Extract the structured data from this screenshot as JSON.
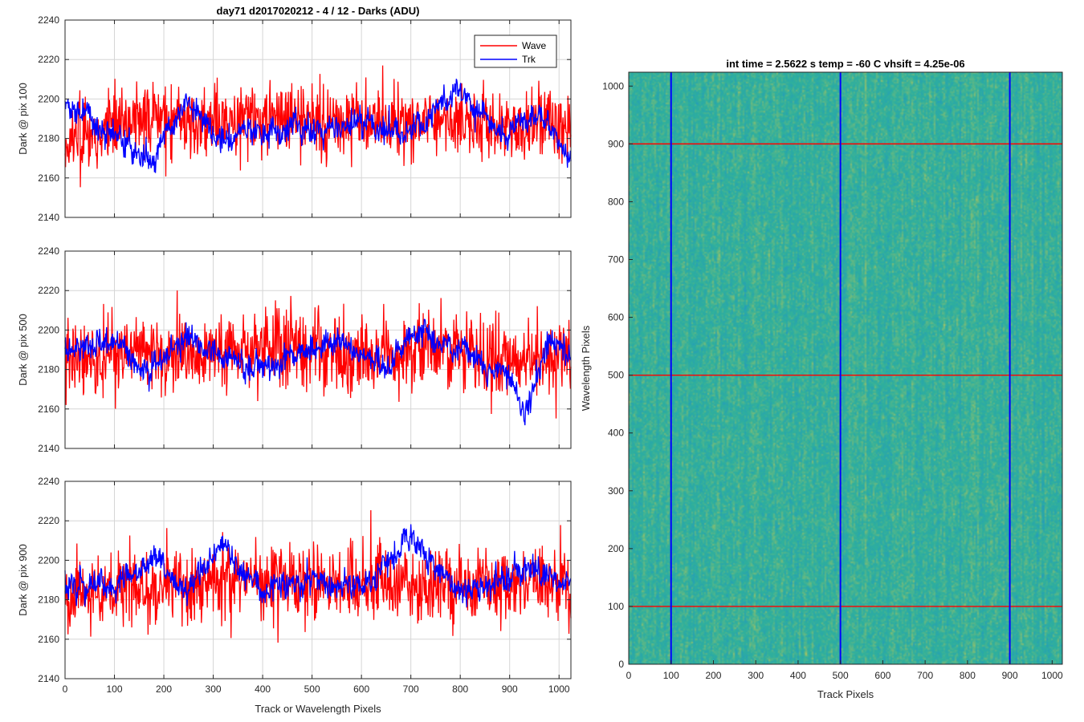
{
  "figure_title": "day71 d2017020212 - 4 / 12 - Darks (ADU)",
  "chart_data": [
    {
      "type": "line",
      "id": "dark-pix-100",
      "title": "day71 d2017020212 - 4 / 12 - Darks (ADU)",
      "xlabel": "",
      "ylabel": "Dark @ pix 100",
      "xlim": [
        0,
        1024
      ],
      "ylim": [
        2140,
        2240
      ],
      "xticks": [
        0,
        100,
        200,
        300,
        400,
        500,
        600,
        700,
        800,
        900,
        1000
      ],
      "yticks": [
        2140,
        2160,
        2180,
        2200,
        2220,
        2240
      ],
      "show_xtick_labels": false,
      "grid": true,
      "legend": {
        "placement": "top-right",
        "entries": [
          "Wave",
          "Trk"
        ]
      },
      "series": [
        {
          "name": "Wave",
          "color": "#ff0000",
          "mean": 2188,
          "noise": 9,
          "drift": 2,
          "x": [
            0,
            128,
            256,
            384,
            512,
            640,
            768,
            896,
            1024
          ],
          "y": [
            2176,
            2190,
            2189,
            2190,
            2191,
            2188,
            2189,
            2187,
            2186
          ]
        },
        {
          "name": "Trk",
          "color": "#0000ff",
          "mean": 2188,
          "noise": 3,
          "drift": 9,
          "x": [
            0,
            80,
            170,
            250,
            300,
            400,
            500,
            600,
            700,
            800,
            880,
            960,
            1024
          ],
          "y": [
            2198,
            2185,
            2168,
            2200,
            2180,
            2182,
            2185,
            2188,
            2182,
            2205,
            2182,
            2192,
            2170
          ]
        }
      ]
    },
    {
      "type": "line",
      "id": "dark-pix-500",
      "title": "",
      "xlabel": "",
      "ylabel": "Dark @ pix 500",
      "xlim": [
        0,
        1024
      ],
      "ylim": [
        2140,
        2240
      ],
      "xticks": [
        0,
        100,
        200,
        300,
        400,
        500,
        600,
        700,
        800,
        900,
        1000
      ],
      "yticks": [
        2140,
        2160,
        2180,
        2200,
        2220,
        2240
      ],
      "show_xtick_labels": false,
      "grid": true,
      "series": [
        {
          "name": "Wave",
          "color": "#ff0000",
          "mean": 2188,
          "noise": 9,
          "drift": 2,
          "x": [
            0,
            128,
            256,
            384,
            512,
            640,
            768,
            896,
            1024
          ],
          "y": [
            2186,
            2190,
            2188,
            2192,
            2190,
            2188,
            2190,
            2186,
            2185
          ]
        },
        {
          "name": "Trk",
          "color": "#0000ff",
          "mean": 2188,
          "noise": 3,
          "drift": 9,
          "x": [
            0,
            100,
            170,
            250,
            300,
            400,
            500,
            550,
            650,
            700,
            800,
            900,
            930,
            980,
            1024
          ],
          "y": [
            2188,
            2195,
            2178,
            2198,
            2186,
            2180,
            2190,
            2195,
            2180,
            2200,
            2190,
            2175,
            2158,
            2198,
            2185
          ]
        }
      ]
    },
    {
      "type": "line",
      "id": "dark-pix-900",
      "title": "",
      "xlabel": "Track or Wavelength Pixels",
      "ylabel": "Dark @ pix 900",
      "xlim": [
        0,
        1024
      ],
      "ylim": [
        2140,
        2240
      ],
      "xticks": [
        0,
        100,
        200,
        300,
        400,
        500,
        600,
        700,
        800,
        900,
        1000
      ],
      "yticks": [
        2140,
        2160,
        2180,
        2200,
        2220,
        2240
      ],
      "show_xtick_labels": true,
      "grid": true,
      "series": [
        {
          "name": "Wave",
          "color": "#ff0000",
          "mean": 2188,
          "noise": 9,
          "drift": 2,
          "x": [
            0,
            128,
            256,
            384,
            512,
            640,
            768,
            896,
            1024
          ],
          "y": [
            2180,
            2186,
            2188,
            2190,
            2188,
            2189,
            2187,
            2188,
            2186
          ]
        },
        {
          "name": "Trk",
          "color": "#0000ff",
          "mean": 2188,
          "noise": 3,
          "drift": 8,
          "x": [
            0,
            100,
            180,
            250,
            310,
            400,
            500,
            600,
            700,
            800,
            880,
            950,
            1024
          ],
          "y": [
            2188,
            2186,
            2202,
            2182,
            2208,
            2185,
            2190,
            2185,
            2212,
            2182,
            2190,
            2196,
            2188
          ]
        }
      ]
    },
    {
      "type": "heatmap",
      "id": "dark-frame-image",
      "title": "int time = 2.5622 s    temp = -60 C    vhsift = 4.25e-06",
      "xlabel": "Track Pixels",
      "ylabel": "Wavelength Pixels",
      "xlim": [
        0,
        1024
      ],
      "ylim": [
        0,
        1024
      ],
      "xticks": [
        0,
        100,
        200,
        300,
        400,
        500,
        600,
        700,
        800,
        900,
        1000
      ],
      "yticks": [
        0,
        100,
        200,
        300,
        400,
        500,
        600,
        700,
        800,
        900,
        1000
      ],
      "grid": false,
      "colormap": "parula",
      "base_color": "#2fb09c",
      "low_color": "#1f93c9",
      "high_color": "#b9c55a",
      "markers": {
        "vertical_lines": {
          "color": "#0000ff",
          "x": [
            100,
            500,
            900
          ]
        },
        "horizontal_lines": {
          "color": "#ff0000",
          "y": [
            100,
            500,
            900
          ]
        }
      }
    }
  ]
}
